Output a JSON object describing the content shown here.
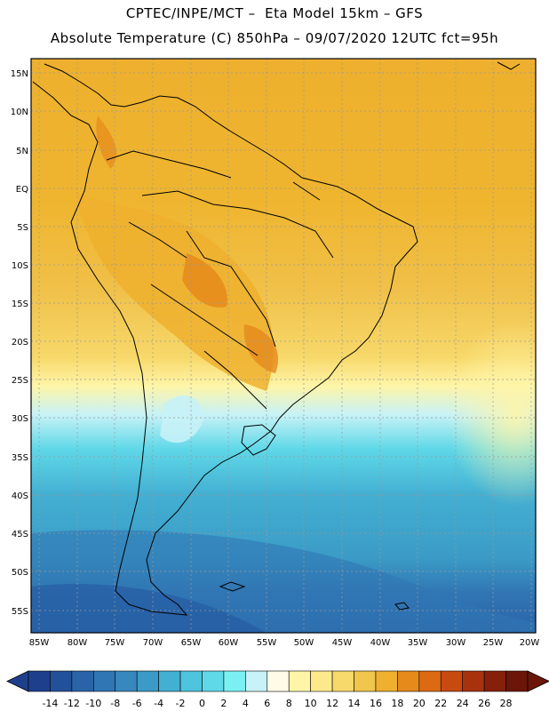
{
  "header": {
    "line1": "CPTEC/INPE/MCT –  Eta Model 15km – GFS",
    "line2": "Absolute Temperature (C) 850hPa – 09/07/2020 12UTC fct=95h"
  },
  "map": {
    "lat_labels": [
      "15N",
      "10N",
      "5N",
      "EQ",
      "5S",
      "10S",
      "15S",
      "20S",
      "25S",
      "30S",
      "35S",
      "40S",
      "45S",
      "50S",
      "55S"
    ],
    "lon_labels": [
      "85W",
      "80W",
      "75W",
      "70W",
      "65W",
      "60W",
      "55W",
      "50W",
      "45W",
      "40W",
      "35W",
      "30W",
      "25W",
      "20W"
    ]
  },
  "colorbar": {
    "ticks": [
      "-14",
      "-12",
      "-10",
      "-8",
      "-6",
      "-4",
      "-2",
      "0",
      "2",
      "4",
      "6",
      "8",
      "10",
      "12",
      "14",
      "16",
      "18",
      "20",
      "22",
      "24",
      "26",
      "28"
    ],
    "colors": [
      "#1d3f8c",
      "#22519b",
      "#2a63a8",
      "#3176b4",
      "#3888bd",
      "#3b9bc6",
      "#43afd2",
      "#4ec4dd",
      "#5fd8e8",
      "#7bf0f3",
      "#c7f2f7",
      "#fffbe6",
      "#fff5a8",
      "#fde98c",
      "#f7d86a",
      "#f0c64c",
      "#eeb02e",
      "#e58a1b",
      "#dc6a12",
      "#c84a10",
      "#a8320e",
      "#86200b",
      "#6b1608"
    ]
  }
}
